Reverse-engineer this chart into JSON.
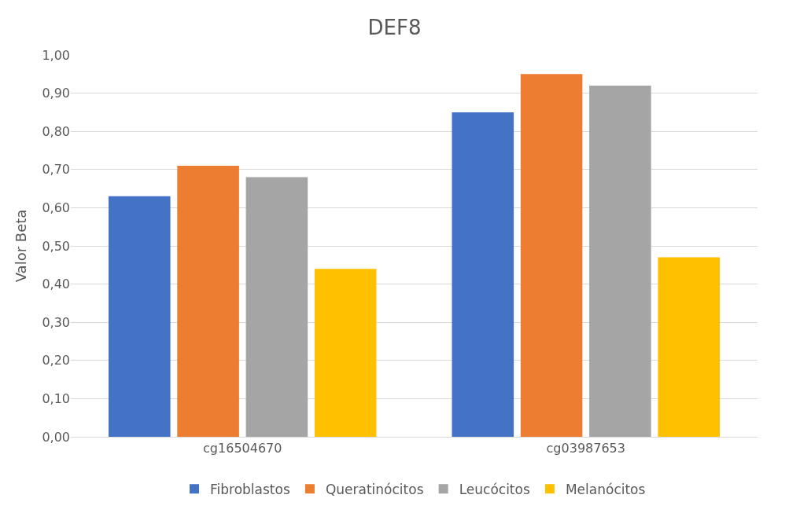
{
  "chart_data": {
    "type": "bar",
    "title": "DEF8",
    "ylabel": "Valor Beta",
    "categories": [
      "cg16504670",
      "cg03987653"
    ],
    "series": [
      {
        "name": "Fibroblastos",
        "color": "#4472c4",
        "values": [
          0.63,
          0.85
        ]
      },
      {
        "name": "Queratinócitos",
        "color": "#ed7d31",
        "values": [
          0.71,
          0.95
        ]
      },
      {
        "name": "Leucócitos",
        "color": "#a5a5a5",
        "values": [
          0.68,
          0.92
        ]
      },
      {
        "name": "Melanócitos",
        "color": "#ffc000",
        "values": [
          0.44,
          0.47
        ]
      }
    ],
    "ylim": [
      0,
      1
    ],
    "yticks": [
      {
        "value": 0,
        "label": "0,00"
      },
      {
        "value": 0.1,
        "label": "0,10"
      },
      {
        "value": 0.2,
        "label": "0,20"
      },
      {
        "value": 0.3,
        "label": "0,30"
      },
      {
        "value": 0.4,
        "label": "0,40"
      },
      {
        "value": 0.5,
        "label": "0,50"
      },
      {
        "value": 0.6,
        "label": "0,60"
      },
      {
        "value": 0.7,
        "label": "0,70"
      },
      {
        "value": 0.8,
        "label": "0,80"
      },
      {
        "value": 0.9,
        "label": "0,90"
      },
      {
        "value": 1,
        "label": "1,00"
      }
    ],
    "grid": "y",
    "legend": "bottom"
  }
}
